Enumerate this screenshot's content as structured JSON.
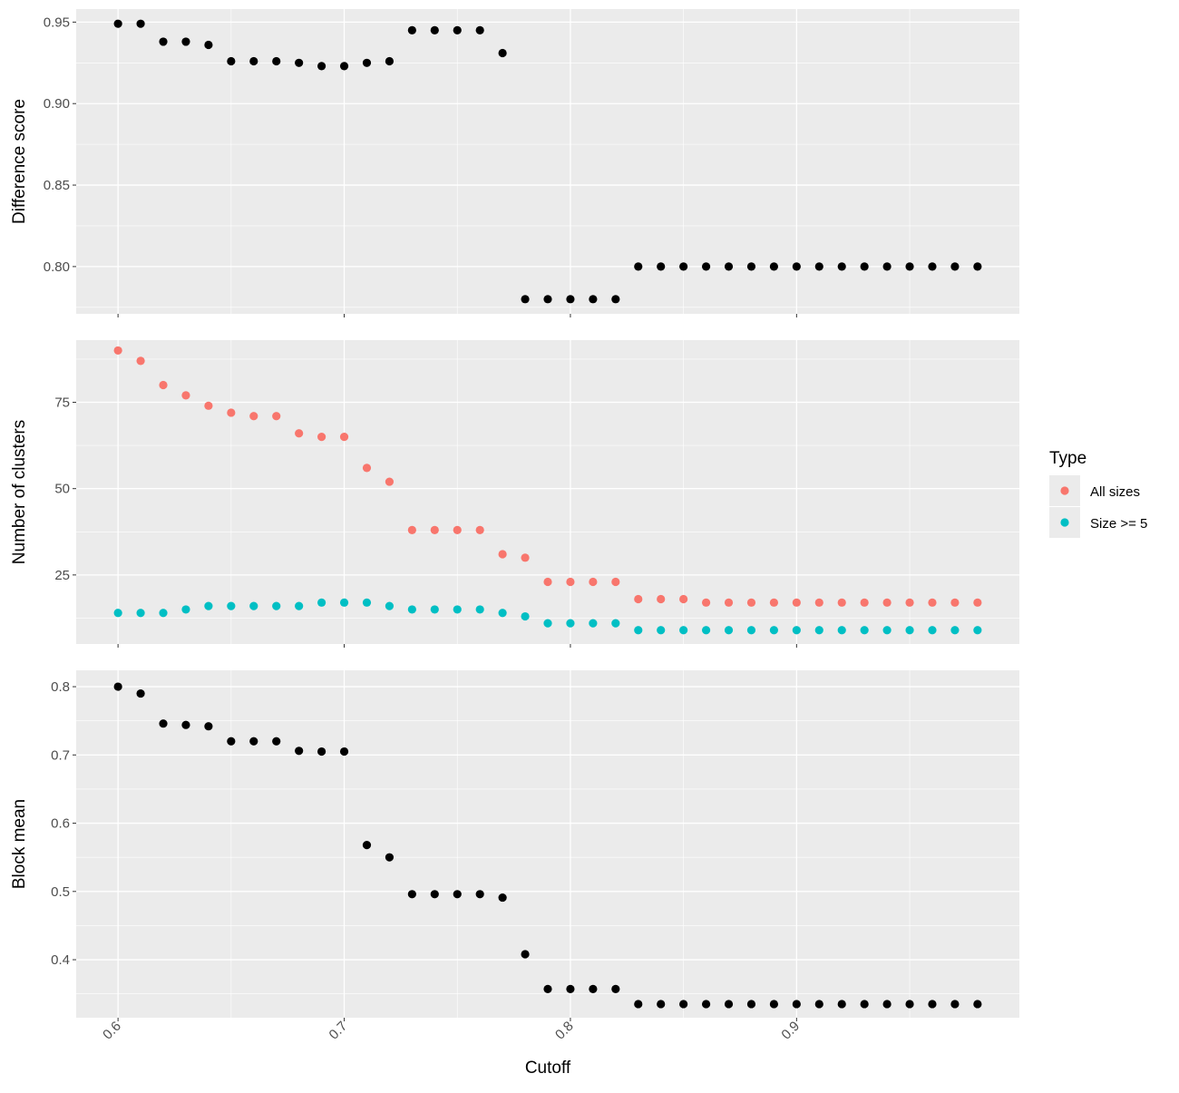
{
  "chart_data": [
    {
      "type": "scatter",
      "panel": "top",
      "xlabel": "",
      "ylabel": "Difference score",
      "ylim": [
        0.771,
        0.958
      ],
      "yticks": [
        0.8,
        0.85,
        0.9,
        0.95
      ],
      "ytick_labels": [
        "0.80",
        "0.85",
        "0.90",
        "0.95"
      ],
      "grid": true,
      "series": [
        {
          "color": "#000000",
          "x": [
            0.6,
            0.61,
            0.62,
            0.63,
            0.64,
            0.65,
            0.66,
            0.67,
            0.68,
            0.69,
            0.7,
            0.71,
            0.72,
            0.73,
            0.74,
            0.75,
            0.76,
            0.77,
            0.78,
            0.79,
            0.8,
            0.81,
            0.82,
            0.83,
            0.84,
            0.85,
            0.86,
            0.87,
            0.88,
            0.89,
            0.9,
            0.91,
            0.92,
            0.93,
            0.94,
            0.95,
            0.96,
            0.97,
            0.98
          ],
          "y": [
            0.949,
            0.949,
            0.938,
            0.938,
            0.936,
            0.926,
            0.926,
            0.926,
            0.925,
            0.923,
            0.923,
            0.925,
            0.926,
            0.945,
            0.945,
            0.945,
            0.945,
            0.931,
            0.78,
            0.78,
            0.78,
            0.78,
            0.78,
            0.8,
            0.8,
            0.8,
            0.8,
            0.8,
            0.8,
            0.8,
            0.8,
            0.8,
            0.8,
            0.8,
            0.8,
            0.8,
            0.8,
            0.8,
            0.8
          ]
        }
      ]
    },
    {
      "type": "scatter",
      "panel": "middle",
      "xlabel": "",
      "ylabel": "Number of clusters",
      "ylim": [
        5,
        93
      ],
      "yticks": [
        25,
        50,
        75
      ],
      "ytick_labels": [
        "25",
        "50",
        "75"
      ],
      "grid": true,
      "legend": {
        "title": "Type",
        "position": "right"
      },
      "series": [
        {
          "name": "All sizes",
          "color": "#F8766D",
          "x": [
            0.6,
            0.61,
            0.62,
            0.63,
            0.64,
            0.65,
            0.66,
            0.67,
            0.68,
            0.69,
            0.7,
            0.71,
            0.72,
            0.73,
            0.74,
            0.75,
            0.76,
            0.77,
            0.78,
            0.79,
            0.8,
            0.81,
            0.82,
            0.83,
            0.84,
            0.85,
            0.86,
            0.87,
            0.88,
            0.89,
            0.9,
            0.91,
            0.92,
            0.93,
            0.94,
            0.95,
            0.96,
            0.97,
            0.98
          ],
          "y": [
            90,
            87,
            80,
            77,
            74,
            72,
            71,
            71,
            66,
            65,
            65,
            56,
            52,
            38,
            38,
            38,
            38,
            31,
            30,
            23,
            23,
            23,
            23,
            18,
            18,
            18,
            17,
            17,
            17,
            17,
            17,
            17,
            17,
            17,
            17,
            17,
            17,
            17,
            17
          ]
        },
        {
          "name": "Size >= 5",
          "color": "#00BFC4",
          "x": [
            0.6,
            0.61,
            0.62,
            0.63,
            0.64,
            0.65,
            0.66,
            0.67,
            0.68,
            0.69,
            0.7,
            0.71,
            0.72,
            0.73,
            0.74,
            0.75,
            0.76,
            0.77,
            0.78,
            0.79,
            0.8,
            0.81,
            0.82,
            0.83,
            0.84,
            0.85,
            0.86,
            0.87,
            0.88,
            0.89,
            0.9,
            0.91,
            0.92,
            0.93,
            0.94,
            0.95,
            0.96,
            0.97,
            0.98
          ],
          "y": [
            14,
            14,
            14,
            15,
            16,
            16,
            16,
            16,
            16,
            17,
            17,
            17,
            16,
            15,
            15,
            15,
            15,
            14,
            13,
            11,
            11,
            11,
            11,
            9,
            9,
            9,
            9,
            9,
            9,
            9,
            9,
            9,
            9,
            9,
            9,
            9,
            9,
            9,
            9
          ]
        }
      ]
    },
    {
      "type": "scatter",
      "panel": "bottom",
      "xlabel": "Cutoff",
      "ylabel": "Block mean",
      "ylim": [
        0.315,
        0.824
      ],
      "yticks": [
        0.4,
        0.5,
        0.6,
        0.7,
        0.8
      ],
      "ytick_labels": [
        "0.4",
        "0.5",
        "0.6",
        "0.7",
        "0.8"
      ],
      "xlim": [
        0.5815,
        0.9985
      ],
      "xticks": [
        0.6,
        0.7,
        0.8,
        0.9
      ],
      "xtick_labels": [
        "0.6",
        "0.7",
        "0.8",
        "0.9"
      ],
      "grid": true,
      "series": [
        {
          "color": "#000000",
          "x": [
            0.6,
            0.61,
            0.62,
            0.63,
            0.64,
            0.65,
            0.66,
            0.67,
            0.68,
            0.69,
            0.7,
            0.71,
            0.72,
            0.73,
            0.74,
            0.75,
            0.76,
            0.77,
            0.78,
            0.79,
            0.8,
            0.81,
            0.82,
            0.83,
            0.84,
            0.85,
            0.86,
            0.87,
            0.88,
            0.89,
            0.9,
            0.91,
            0.92,
            0.93,
            0.94,
            0.95,
            0.96,
            0.97,
            0.98
          ],
          "y": [
            0.8,
            0.79,
            0.746,
            0.744,
            0.742,
            0.72,
            0.72,
            0.72,
            0.706,
            0.705,
            0.705,
            0.568,
            0.55,
            0.496,
            0.496,
            0.496,
            0.496,
            0.491,
            0.408,
            0.357,
            0.357,
            0.357,
            0.357,
            0.335,
            0.335,
            0.335,
            0.335,
            0.335,
            0.335,
            0.335,
            0.335,
            0.335,
            0.335,
            0.335,
            0.335,
            0.335,
            0.335,
            0.335,
            0.335
          ]
        }
      ]
    }
  ]
}
